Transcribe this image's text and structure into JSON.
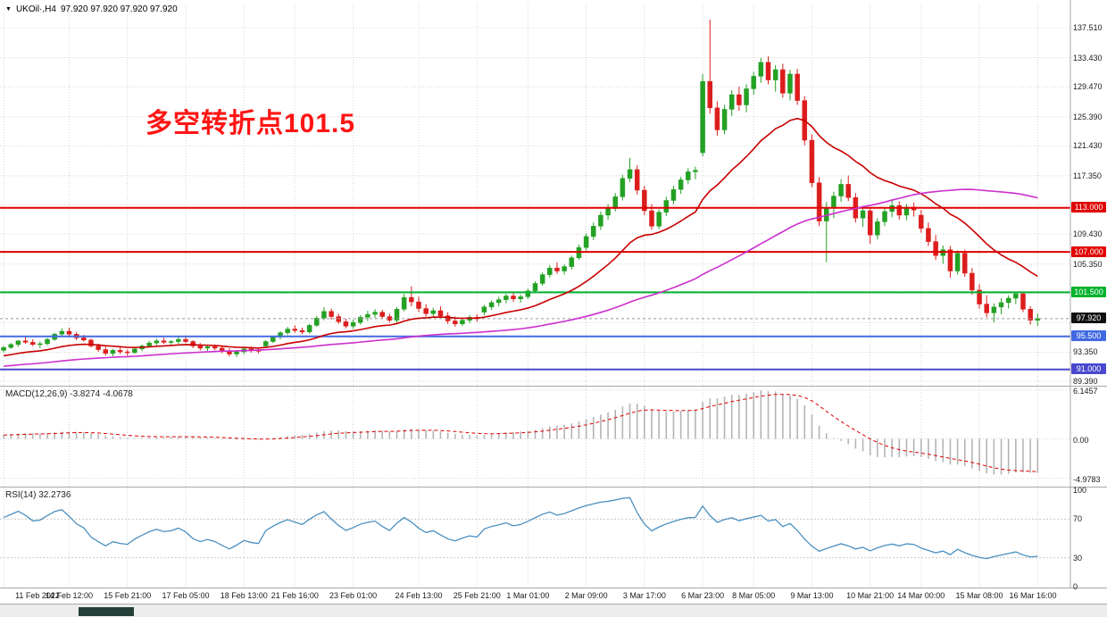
{
  "header": {
    "symbol_timeframe": "UKOil·,H4",
    "ohlc": "97.920 97.920 97.920 97.920"
  },
  "annotation": {
    "text": "多空转折点101.5",
    "color": "#ff1414"
  },
  "colors": {
    "background": "#ffffff",
    "bull": "#23a123",
    "bear": "#dd1d1d",
    "ma_fast": "#c80000",
    "ma_slow": "#cc2fcf",
    "macd_hist": "#b4b4b4",
    "macd_signal": "#e00000",
    "rsi_line": "#4a8fc0",
    "grid": "#d4d4d4",
    "panel_border": "#a8a8a8",
    "axis_text": "#1a1a1a",
    "current_price_badge": "#111111",
    "bottom_thumb": "#233f38"
  },
  "levels": [
    {
      "value": 113.0,
      "label": "113.000",
      "color": "#e00000"
    },
    {
      "value": 107.0,
      "label": "107.000",
      "color": "#e00000"
    },
    {
      "value": 101.5,
      "label": "101.500",
      "color": "#00b22d"
    },
    {
      "value": 95.5,
      "label": "95.500",
      "color": "#4169e1"
    },
    {
      "value": 91.0,
      "label": "91.000",
      "color": "#4848d0"
    }
  ],
  "current_price": {
    "value": 97.92,
    "label": "97.920"
  },
  "axes": {
    "price_labels": [
      {
        "value": 137.51,
        "text": "137.510"
      },
      {
        "value": 133.43,
        "text": "133.430"
      },
      {
        "value": 129.47,
        "text": "129.470"
      },
      {
        "value": 125.39,
        "text": "125.390"
      },
      {
        "value": 121.43,
        "text": "121.430"
      },
      {
        "value": 117.35,
        "text": "117.350"
      },
      {
        "value": 109.43,
        "text": "109.430"
      },
      {
        "value": 105.35,
        "text": "105.350"
      },
      {
        "value": 93.35,
        "text": "93.350"
      },
      {
        "value": 89.39,
        "text": "89.390"
      }
    ],
    "grid_values": [
      137.51,
      133.43,
      129.47,
      125.39,
      121.43,
      117.35,
      113.39,
      109.43,
      105.35,
      101.39,
      97.39,
      93.35,
      89.39
    ],
    "price_min": 89.03,
    "price_max": 138.85
  },
  "x_axis": {
    "labels": [
      {
        "text": "11 Feb 2022",
        "i": 0
      },
      {
        "text": "14 Feb 12:00",
        "i": 9
      },
      {
        "text": "15 Feb 21:00",
        "i": 17
      },
      {
        "text": "17 Feb 05:00",
        "i": 25
      },
      {
        "text": "18 Feb 13:00",
        "i": 33
      },
      {
        "text": "21 Feb 16:00",
        "i": 40
      },
      {
        "text": "23 Feb 01:00",
        "i": 48
      },
      {
        "text": "24 Feb 13:00",
        "i": 57
      },
      {
        "text": "25 Feb 21:00",
        "i": 65
      },
      {
        "text": "1 Mar 01:00",
        "i": 72
      },
      {
        "text": "2 Mar 09:00",
        "i": 80
      },
      {
        "text": "3 Mar 17:00",
        "i": 88
      },
      {
        "text": "6 Mar 23:00",
        "i": 96
      },
      {
        "text": "8 Mar 05:00",
        "i": 103
      },
      {
        "text": "9 Mar 13:00",
        "i": 111
      },
      {
        "text": "10 Mar 21:00",
        "i": 119
      },
      {
        "text": "14 Mar 00:00",
        "i": 126
      },
      {
        "text": "15 Mar 08:00",
        "i": 134
      },
      {
        "text": "16 Mar 16:00",
        "i": 142
      }
    ]
  },
  "indicators": {
    "macd": {
      "title": "MACD(12,26,9) -3.8274 -4.0678",
      "fast": 12,
      "slow": 26,
      "signal": 9,
      "scale": [
        {
          "value": 6.1457,
          "text": "6.1457"
        },
        {
          "value": 0,
          "text": "0.00"
        },
        {
          "value": -4.9783,
          "text": "-4.9783"
        }
      ]
    },
    "rsi": {
      "title": "RSI(14) 32.2736",
      "period": 14,
      "scale": [
        {
          "value": 100,
          "text": "100"
        },
        {
          "value": 70,
          "text": "70"
        },
        {
          "value": 30,
          "text": "30"
        },
        {
          "value": 0,
          "text": "0"
        }
      ]
    }
  },
  "chart_data": {
    "type": "candlestick",
    "symbol": "UKOil",
    "timeframe": "H4",
    "ylim": [
      89.03,
      138.85
    ],
    "horizontal_lines": [
      113.0,
      107.0,
      101.5,
      95.5,
      91.0
    ],
    "last_price": 97.92,
    "series_notes": [
      "fast MA (red)",
      "slow MA (magenta)",
      "MACD(12,26,9) histogram+signal",
      "RSI(14)"
    ],
    "candles": [
      [
        93.6,
        94.2,
        93.3,
        94.0
      ],
      [
        94.0,
        94.6,
        93.8,
        94.4
      ],
      [
        94.4,
        95.0,
        94.1,
        94.9
      ],
      [
        94.9,
        95.5,
        94.5,
        94.7
      ],
      [
        94.7,
        95.1,
        94.2,
        94.4
      ],
      [
        94.4,
        94.8,
        93.9,
        94.5
      ],
      [
        94.5,
        95.3,
        94.3,
        95.1
      ],
      [
        95.1,
        96.0,
        94.9,
        95.8
      ],
      [
        95.8,
        96.6,
        95.5,
        96.2
      ],
      [
        96.2,
        96.7,
        95.6,
        95.8
      ],
      [
        95.8,
        96.1,
        95.0,
        95.3
      ],
      [
        95.3,
        95.7,
        94.8,
        95.0
      ],
      [
        95.0,
        95.2,
        94.0,
        94.2
      ],
      [
        94.2,
        94.5,
        93.4,
        93.7
      ],
      [
        93.7,
        94.1,
        92.9,
        93.2
      ],
      [
        93.2,
        93.8,
        92.8,
        93.6
      ],
      [
        93.6,
        94.0,
        93.1,
        93.4
      ],
      [
        93.4,
        93.7,
        92.9,
        93.3
      ],
      [
        93.3,
        94.0,
        93.1,
        93.8
      ],
      [
        93.8,
        94.4,
        93.5,
        94.2
      ],
      [
        94.2,
        94.9,
        94.0,
        94.6
      ],
      [
        94.6,
        95.2,
        94.3,
        94.9
      ],
      [
        94.9,
        95.3,
        94.5,
        94.7
      ],
      [
        94.7,
        95.0,
        94.3,
        94.8
      ],
      [
        94.8,
        95.4,
        94.5,
        95.1
      ],
      [
        95.1,
        95.6,
        94.6,
        94.8
      ],
      [
        94.8,
        95.0,
        93.9,
        94.2
      ],
      [
        94.2,
        94.6,
        93.6,
        93.9
      ],
      [
        93.9,
        94.4,
        93.5,
        94.1
      ],
      [
        94.1,
        94.4,
        93.6,
        93.9
      ],
      [
        93.9,
        94.2,
        93.2,
        93.5
      ],
      [
        93.5,
        93.9,
        92.8,
        93.1
      ],
      [
        93.1,
        93.6,
        92.7,
        93.4
      ],
      [
        93.4,
        94.0,
        93.1,
        93.8
      ],
      [
        93.8,
        94.1,
        93.3,
        93.6
      ],
      [
        93.6,
        93.9,
        93.2,
        93.5
      ],
      [
        94.2,
        95.0,
        93.9,
        94.8
      ],
      [
        94.8,
        95.6,
        94.6,
        95.4
      ],
      [
        95.4,
        96.2,
        95.1,
        96.0
      ],
      [
        96.0,
        96.8,
        95.7,
        96.5
      ],
      [
        96.5,
        97.0,
        96.0,
        96.3
      ],
      [
        96.3,
        96.7,
        95.8,
        96.1
      ],
      [
        96.1,
        97.2,
        95.9,
        97.0
      ],
      [
        97.0,
        98.3,
        96.8,
        98.0
      ],
      [
        98.0,
        99.5,
        97.7,
        98.9
      ],
      [
        98.9,
        99.3,
        97.8,
        98.2
      ],
      [
        98.2,
        98.6,
        97.2,
        97.5
      ],
      [
        97.5,
        97.9,
        96.6,
        96.9
      ],
      [
        96.9,
        97.8,
        96.5,
        97.4
      ],
      [
        97.4,
        98.4,
        97.1,
        98.1
      ],
      [
        98.1,
        99.0,
        97.6,
        98.5
      ],
      [
        98.5,
        99.2,
        98.0,
        98.8
      ],
      [
        98.8,
        99.1,
        97.9,
        98.2
      ],
      [
        98.2,
        98.6,
        97.4,
        97.7
      ],
      [
        97.7,
        99.5,
        97.3,
        99.2
      ],
      [
        99.2,
        101.3,
        98.9,
        100.8
      ],
      [
        100.8,
        102.3,
        99.6,
        100.2
      ],
      [
        100.2,
        100.9,
        98.8,
        99.3
      ],
      [
        99.3,
        99.9,
        98.2,
        98.6
      ],
      [
        98.6,
        99.4,
        98.1,
        99.0
      ],
      [
        99.0,
        99.6,
        98.0,
        98.3
      ],
      [
        98.3,
        98.8,
        97.2,
        97.6
      ],
      [
        97.6,
        98.2,
        96.8,
        97.2
      ],
      [
        97.2,
        98.0,
        96.9,
        97.7
      ],
      [
        97.7,
        98.4,
        97.3,
        98.1
      ],
      [
        98.1,
        98.5,
        97.5,
        97.9
      ],
      [
        98.8,
        99.8,
        98.4,
        99.5
      ],
      [
        99.5,
        100.4,
        99.1,
        100.1
      ],
      [
        100.1,
        100.9,
        99.6,
        100.5
      ],
      [
        100.5,
        101.3,
        100.0,
        101.0
      ],
      [
        101.0,
        101.4,
        100.2,
        100.6
      ],
      [
        100.6,
        101.2,
        100.1,
        100.9
      ],
      [
        100.9,
        102.0,
        100.6,
        101.7
      ],
      [
        101.7,
        103.0,
        101.4,
        102.7
      ],
      [
        102.7,
        104.2,
        102.4,
        103.9
      ],
      [
        103.9,
        105.2,
        103.5,
        104.8
      ],
      [
        104.8,
        105.6,
        104.0,
        104.4
      ],
      [
        104.4,
        105.3,
        103.9,
        105.0
      ],
      [
        105.0,
        106.5,
        104.6,
        106.2
      ],
      [
        106.2,
        108.0,
        105.9,
        107.6
      ],
      [
        107.6,
        109.5,
        107.2,
        109.1
      ],
      [
        109.1,
        111.0,
        108.6,
        110.5
      ],
      [
        110.5,
        112.5,
        110.0,
        112.0
      ],
      [
        112.0,
        113.5,
        111.4,
        112.9
      ],
      [
        112.9,
        115.0,
        112.5,
        114.5
      ],
      [
        114.5,
        117.5,
        114.0,
        117.0
      ],
      [
        117.0,
        119.8,
        116.5,
        118.2
      ],
      [
        118.2,
        118.8,
        114.8,
        115.4
      ],
      [
        115.4,
        116.0,
        112.0,
        112.6
      ],
      [
        112.6,
        113.5,
        110.0,
        110.5
      ],
      [
        110.5,
        112.8,
        110.1,
        112.4
      ],
      [
        112.4,
        114.5,
        111.9,
        114.0
      ],
      [
        114.0,
        116.0,
        113.5,
        115.5
      ],
      [
        115.5,
        117.2,
        114.9,
        116.8
      ],
      [
        116.8,
        118.4,
        116.2,
        117.9
      ],
      [
        117.9,
        118.6,
        116.9,
        118.1
      ],
      [
        120.5,
        131.2,
        120.0,
        130.2
      ],
      [
        130.2,
        138.6,
        125.8,
        126.6
      ],
      [
        126.6,
        127.5,
        122.8,
        123.6
      ],
      [
        123.6,
        127.0,
        123.0,
        126.4
      ],
      [
        126.4,
        129.0,
        125.5,
        128.4
      ],
      [
        128.4,
        129.5,
        126.2,
        127.0
      ],
      [
        127.0,
        129.8,
        126.0,
        129.2
      ],
      [
        129.2,
        131.5,
        128.4,
        130.9
      ],
      [
        130.9,
        133.4,
        130.0,
        132.8
      ],
      [
        132.8,
        133.6,
        129.8,
        130.4
      ],
      [
        130.4,
        132.4,
        128.8,
        131.8
      ],
      [
        131.8,
        132.6,
        128.0,
        128.6
      ],
      [
        128.6,
        131.8,
        127.6,
        131.2
      ],
      [
        131.2,
        131.9,
        127.0,
        127.6
      ],
      [
        127.6,
        128.2,
        121.5,
        122.2
      ],
      [
        122.2,
        123.0,
        115.8,
        116.4
      ],
      [
        116.4,
        117.2,
        110.5,
        111.2
      ],
      [
        111.2,
        113.8,
        105.6,
        113.0
      ],
      [
        113.0,
        115.2,
        111.6,
        114.6
      ],
      [
        114.6,
        116.9,
        113.8,
        116.2
      ],
      [
        116.2,
        117.4,
        113.9,
        114.4
      ],
      [
        114.4,
        115.0,
        111.0,
        111.6
      ],
      [
        111.6,
        113.2,
        110.4,
        112.6
      ],
      [
        112.6,
        113.0,
        108.1,
        109.3
      ],
      [
        109.3,
        111.6,
        108.7,
        111.1
      ],
      [
        111.1,
        113.0,
        110.5,
        112.5
      ],
      [
        112.5,
        114.0,
        111.7,
        113.3
      ],
      [
        113.3,
        113.9,
        111.4,
        112.0
      ],
      [
        112.0,
        113.5,
        111.3,
        113.1
      ],
      [
        113.1,
        113.7,
        111.8,
        112.7
      ],
      [
        112.0,
        112.7,
        109.6,
        110.2
      ],
      [
        110.2,
        111.0,
        107.8,
        108.4
      ],
      [
        108.4,
        109.3,
        105.9,
        106.5
      ],
      [
        106.5,
        107.9,
        105.4,
        107.3
      ],
      [
        107.3,
        107.8,
        103.5,
        104.4
      ],
      [
        104.4,
        107.2,
        103.9,
        106.8
      ],
      [
        106.8,
        107.3,
        103.6,
        104.1
      ],
      [
        104.1,
        104.8,
        101.2,
        101.8
      ],
      [
        101.8,
        102.6,
        99.3,
        99.9
      ],
      [
        99.9,
        101.1,
        98.1,
        98.7
      ],
      [
        98.7,
        100.0,
        97.4,
        99.5
      ],
      [
        99.5,
        100.7,
        98.5,
        100.1
      ],
      [
        100.1,
        101.1,
        99.3,
        100.7
      ],
      [
        100.7,
        101.6,
        99.9,
        101.3
      ],
      [
        101.3,
        101.5,
        98.8,
        99.2
      ],
      [
        99.2,
        99.6,
        97.1,
        97.7
      ],
      [
        97.7,
        98.6,
        96.9,
        97.92
      ]
    ]
  }
}
